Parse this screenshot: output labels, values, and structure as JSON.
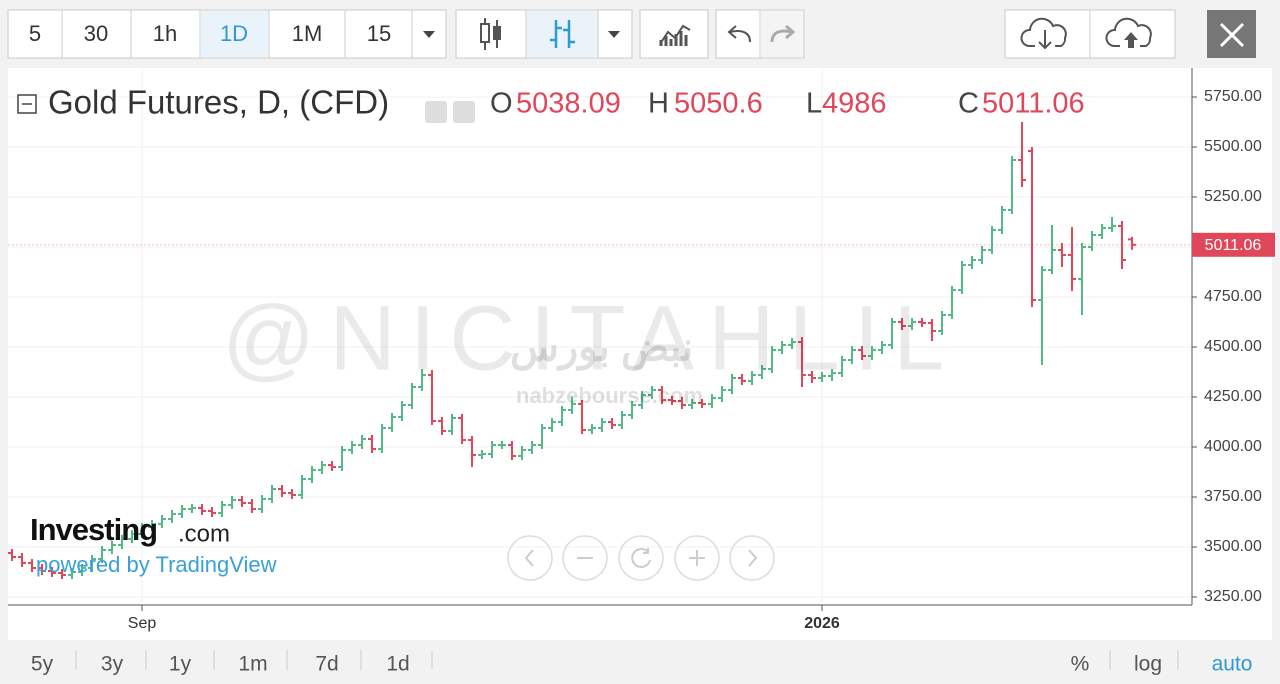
{
  "toolbar": [
    "5",
    "30",
    "1h",
    "1D",
    "1M",
    "15"
  ],
  "watermark": {
    "handle": "@NICITAHLIL",
    "arabic": "نبض بورس",
    "site": "nabzebourse.com"
  },
  "branding": {
    "name": "Investing",
    "suffix": ".com",
    "powered": "powered by TradingView"
  },
  "footer": {
    "ranges": [
      "5y",
      "3y",
      "1y",
      "1m",
      "7d",
      "1d"
    ],
    "options": [
      "%",
      "log",
      "auto"
    ]
  },
  "chart_data": {
    "type": "ohlc",
    "title": "Gold Futures, D, (CFD)",
    "ohlc_labels": [
      "O",
      "H",
      "L",
      "C"
    ],
    "up_color": "#53b987",
    "down_color": "#e0475a",
    "grid": true,
    "ylim": [
      3210,
      5895
    ],
    "yticks": [
      {
        "value": 3250,
        "label": "3250.00"
      },
      {
        "value": 3500,
        "label": "3500.00"
      },
      {
        "value": 3750,
        "label": "3750.00"
      },
      {
        "value": 4000,
        "label": "4000.00"
      },
      {
        "value": 4250,
        "label": "4250.00"
      },
      {
        "value": 4500,
        "label": "4500.00"
      },
      {
        "value": 4750,
        "label": "4750.00"
      },
      {
        "value": 5000,
        "label": "5000.00"
      },
      {
        "value": 5250,
        "label": "5250.00"
      },
      {
        "value": 5500,
        "label": "5500.00"
      },
      {
        "value": 5750,
        "label": "5750.00"
      }
    ],
    "categories": [
      null,
      null,
      null,
      null,
      null,
      null,
      null,
      null,
      null,
      null,
      null,
      null,
      null,
      "Sep",
      null,
      null,
      null,
      null,
      null,
      null,
      null,
      null,
      null,
      null,
      null,
      null,
      null,
      null,
      null,
      null,
      null,
      null,
      null,
      null,
      null,
      null,
      null,
      null,
      null,
      null,
      null,
      null,
      null,
      null,
      null,
      null,
      null,
      null,
      null,
      null,
      null,
      null,
      null,
      null,
      null,
      null,
      null,
      null,
      null,
      null,
      null,
      null,
      null,
      null,
      null,
      null,
      null,
      null,
      null,
      null,
      null,
      null,
      null,
      null,
      null,
      null,
      null,
      null,
      null,
      null,
      null,
      "2026",
      null,
      null,
      null,
      null,
      null,
      null,
      null,
      null,
      null,
      null,
      null,
      null,
      null,
      null,
      null,
      null,
      null,
      null,
      null,
      null,
      null,
      null,
      null,
      null,
      null,
      null,
      null,
      null,
      null,
      null,
      null
    ],
    "open": [
      3470,
      3450,
      3420,
      3395,
      3380,
      3370,
      3360,
      3375,
      3395,
      3440,
      3485,
      3510,
      3540,
      3565,
      3600,
      3615,
      3640,
      3665,
      3690,
      3695,
      3680,
      3670,
      3710,
      3735,
      3720,
      3690,
      3740,
      3790,
      3770,
      3760,
      3840,
      3885,
      3910,
      3900,
      3985,
      4010,
      4040,
      3990,
      4095,
      4150,
      4210,
      4300,
      4360,
      4130,
      4080,
      4145,
      4035,
      3960,
      3965,
      4010,
      4010,
      3955,
      3985,
      4010,
      4095,
      4125,
      4185,
      4215,
      4085,
      4095,
      4125,
      4110,
      4160,
      4210,
      4260,
      4285,
      4235,
      4230,
      4210,
      4220,
      4215,
      4245,
      4285,
      4345,
      4330,
      4360,
      4390,
      4485,
      4510,
      4525,
      4360,
      4345,
      4355,
      4370,
      4435,
      4485,
      4455,
      4485,
      4510,
      4625,
      4605,
      4625,
      4620,
      4580,
      4660,
      4785,
      4910,
      4935,
      4985,
      5085,
      5185,
      5435,
      5480,
      4735,
      4885,
      4985,
      4960,
      4840,
      5000,
      5060,
      5095,
      5105,
      5038.09
    ],
    "high": [
      3490,
      3470,
      3440,
      3415,
      3400,
      3390,
      3395,
      3415,
      3460,
      3505,
      3530,
      3560,
      3585,
      3620,
      3635,
      3660,
      3685,
      3710,
      3715,
      3715,
      3700,
      3730,
      3755,
      3755,
      3740,
      3760,
      3810,
      3810,
      3790,
      3860,
      3905,
      3930,
      3930,
      4005,
      4030,
      4060,
      4060,
      4115,
      4170,
      4230,
      4320,
      4390,
      4385,
      4150,
      4165,
      4165,
      4055,
      3985,
      4030,
      4030,
      4030,
      4005,
      4030,
      4115,
      4145,
      4205,
      4250,
      4235,
      4115,
      4145,
      4145,
      4180,
      4230,
      4280,
      4305,
      4305,
      4255,
      4250,
      4240,
      4240,
      4265,
      4305,
      4365,
      4365,
      4380,
      4410,
      4505,
      4530,
      4545,
      4550,
      4380,
      4375,
      4390,
      4455,
      4505,
      4505,
      4505,
      4530,
      4645,
      4645,
      4645,
      4645,
      4640,
      4680,
      4805,
      4930,
      4955,
      5005,
      5105,
      5205,
      5455,
      5625,
      5500,
      4905,
      5110,
      5020,
      5100,
      5020,
      5080,
      5115,
      5150,
      5130,
      5050.6
    ],
    "low": [
      3430,
      3400,
      3375,
      3360,
      3350,
      3340,
      3340,
      3355,
      3375,
      3420,
      3465,
      3490,
      3520,
      3545,
      3580,
      3595,
      3620,
      3645,
      3670,
      3660,
      3650,
      3650,
      3690,
      3700,
      3670,
      3670,
      3720,
      3750,
      3740,
      3740,
      3820,
      3865,
      3880,
      3880,
      3965,
      3990,
      3970,
      3970,
      4075,
      4130,
      4190,
      4280,
      4110,
      4060,
      4060,
      4015,
      3900,
      3940,
      3945,
      3990,
      3935,
      3935,
      3965,
      3990,
      4075,
      4105,
      4165,
      4065,
      4065,
      4075,
      4090,
      4090,
      4140,
      4190,
      4240,
      4215,
      4210,
      4190,
      4190,
      4195,
      4195,
      4225,
      4265,
      4310,
      4310,
      4340,
      4370,
      4465,
      4490,
      4300,
      4320,
      4325,
      4330,
      4350,
      4415,
      4435,
      4435,
      4465,
      4490,
      4585,
      4585,
      4600,
      4530,
      4560,
      4640,
      4765,
      4890,
      4915,
      4965,
      5065,
      5165,
      5300,
      4700,
      4410,
      4865,
      4900,
      4780,
      4660,
      4980,
      5040,
      5075,
      4890,
      4986.0
    ],
    "close": [
      3450,
      3420,
      3395,
      3380,
      3370,
      3360,
      3375,
      3395,
      3440,
      3485,
      3510,
      3540,
      3565,
      3600,
      3615,
      3640,
      3665,
      3690,
      3695,
      3680,
      3670,
      3710,
      3735,
      3720,
      3690,
      3740,
      3790,
      3770,
      3760,
      3840,
      3885,
      3910,
      3900,
      3985,
      4010,
      4040,
      3990,
      4095,
      4150,
      4210,
      4300,
      4360,
      4130,
      4080,
      4145,
      4035,
      3960,
      3965,
      4010,
      4010,
      3955,
      3985,
      4010,
      4095,
      4125,
      4185,
      4215,
      4085,
      4095,
      4125,
      4110,
      4160,
      4210,
      4260,
      4285,
      4235,
      4230,
      4210,
      4220,
      4215,
      4245,
      4285,
      4345,
      4330,
      4360,
      4390,
      4485,
      4510,
      4525,
      4360,
      4345,
      4355,
      4370,
      4435,
      4485,
      4455,
      4485,
      4510,
      4625,
      4605,
      4625,
      4620,
      4580,
      4660,
      4785,
      4910,
      4935,
      4985,
      5085,
      5185,
      5435,
      5335,
      4735,
      4885,
      4985,
      4960,
      4840,
      5000,
      5060,
      5095,
      5105,
      4935,
      5011.06
    ]
  }
}
